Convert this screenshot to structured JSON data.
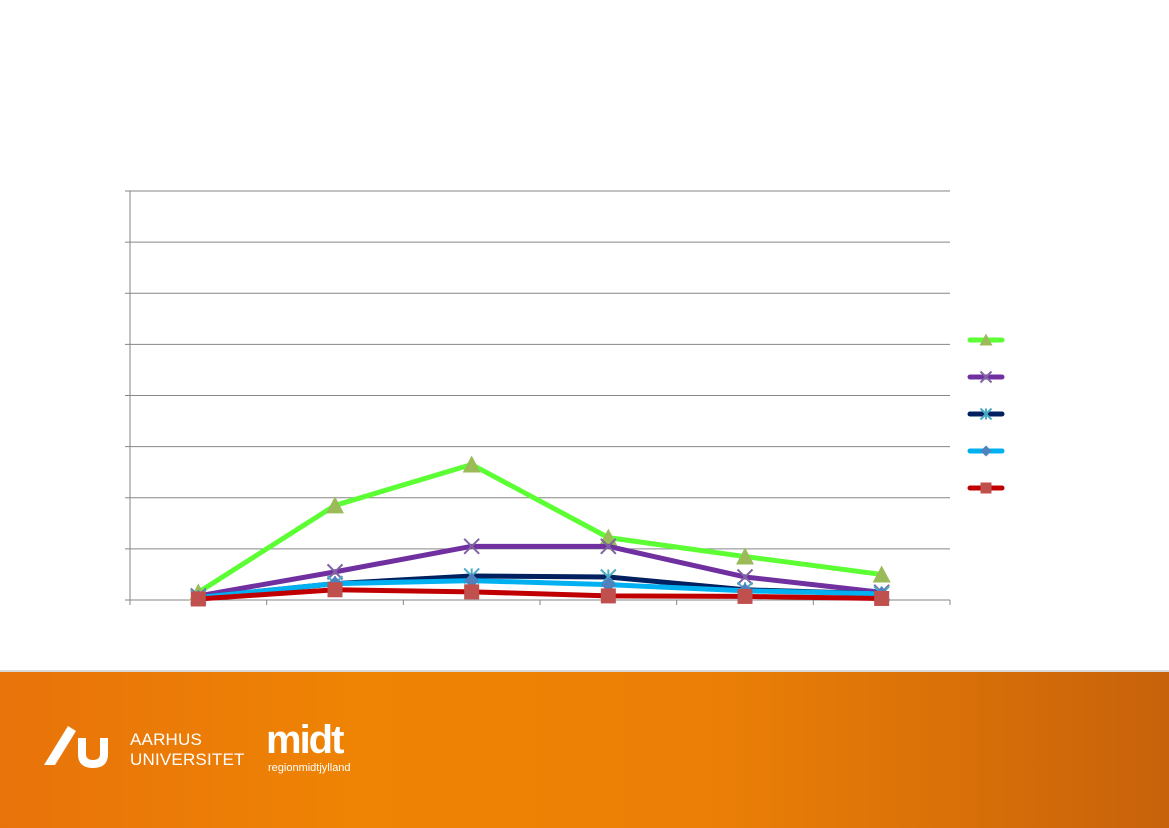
{
  "chart_data": {
    "type": "line",
    "categories": [
      "",
      "",
      "",
      "",
      "",
      ""
    ],
    "ylim": [
      0,
      8
    ],
    "grid": true,
    "legend_position": "right",
    "series": [
      {
        "values": [
          0.15,
          1.85,
          2.65,
          1.22,
          0.85,
          0.5
        ],
        "color": "#5bff33",
        "marker": "triangle",
        "marker_color": "#9bbb59"
      },
      {
        "values": [
          0.08,
          0.55,
          1.05,
          1.05,
          0.45,
          0.15
        ],
        "color": "#7030a0",
        "marker": "x",
        "marker_color": "#8064a2"
      },
      {
        "values": [
          0.05,
          0.32,
          0.47,
          0.45,
          0.2,
          0.12
        ],
        "color": "#002060",
        "marker": "star",
        "marker_color": "#4bacc6"
      },
      {
        "values": [
          0.05,
          0.32,
          0.38,
          0.3,
          0.18,
          0.12
        ],
        "color": "#00b0f0",
        "marker": "diamond",
        "marker_color": "#4f81bd"
      },
      {
        "values": [
          0.02,
          0.2,
          0.16,
          0.08,
          0.07,
          0.03
        ],
        "color": "#c00000",
        "marker": "square",
        "marker_color": "#c0504d"
      }
    ]
  },
  "footer": {
    "university_line1": "AARHUS",
    "university_line2": "UNIVERSITET",
    "region_logo_word": "midt",
    "region_logo_sub": "regionmidtjylland"
  }
}
